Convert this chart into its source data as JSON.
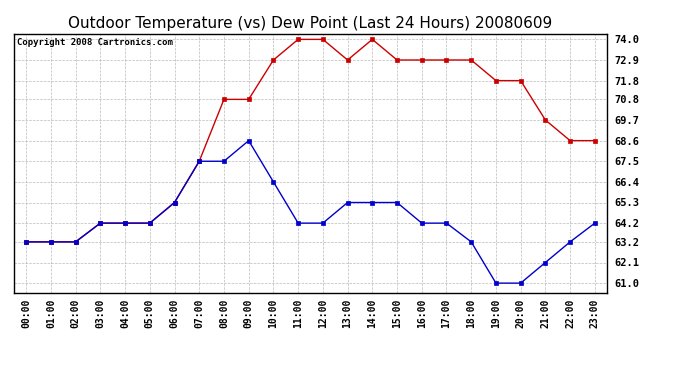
{
  "title": "Outdoor Temperature (vs) Dew Point (Last 24 Hours) 20080609",
  "copyright": "Copyright 2008 Cartronics.com",
  "x_labels": [
    "00:00",
    "01:00",
    "02:00",
    "03:00",
    "04:00",
    "05:00",
    "06:00",
    "07:00",
    "08:00",
    "09:00",
    "10:00",
    "11:00",
    "12:00",
    "13:00",
    "14:00",
    "15:00",
    "16:00",
    "17:00",
    "18:00",
    "19:00",
    "20:00",
    "21:00",
    "22:00",
    "23:00"
  ],
  "temp_data": [
    63.2,
    63.2,
    63.2,
    64.2,
    64.2,
    64.2,
    65.3,
    67.5,
    70.8,
    70.8,
    72.9,
    74.0,
    74.0,
    72.9,
    74.0,
    72.9,
    72.9,
    72.9,
    72.9,
    71.8,
    71.8,
    69.7,
    68.6,
    68.6
  ],
  "dew_data": [
    63.2,
    63.2,
    63.2,
    64.2,
    64.2,
    64.2,
    65.3,
    67.5,
    67.5,
    68.6,
    66.4,
    64.2,
    64.2,
    65.3,
    65.3,
    65.3,
    64.2,
    64.2,
    63.2,
    61.0,
    61.0,
    62.1,
    63.2,
    64.2
  ],
  "temp_color": "#cc0000",
  "dew_color": "#0000cc",
  "fig_bg": "#ffffff",
  "plot_bg": "#ffffff",
  "ylim_min": 61.0,
  "ylim_max": 74.0,
  "yticks": [
    61.0,
    62.1,
    63.2,
    64.2,
    65.3,
    66.4,
    67.5,
    68.6,
    69.7,
    70.8,
    71.8,
    72.9,
    74.0
  ],
  "title_fontsize": 11,
  "copyright_fontsize": 6.5,
  "tick_fontsize": 7,
  "ytick_fontsize": 7.5
}
